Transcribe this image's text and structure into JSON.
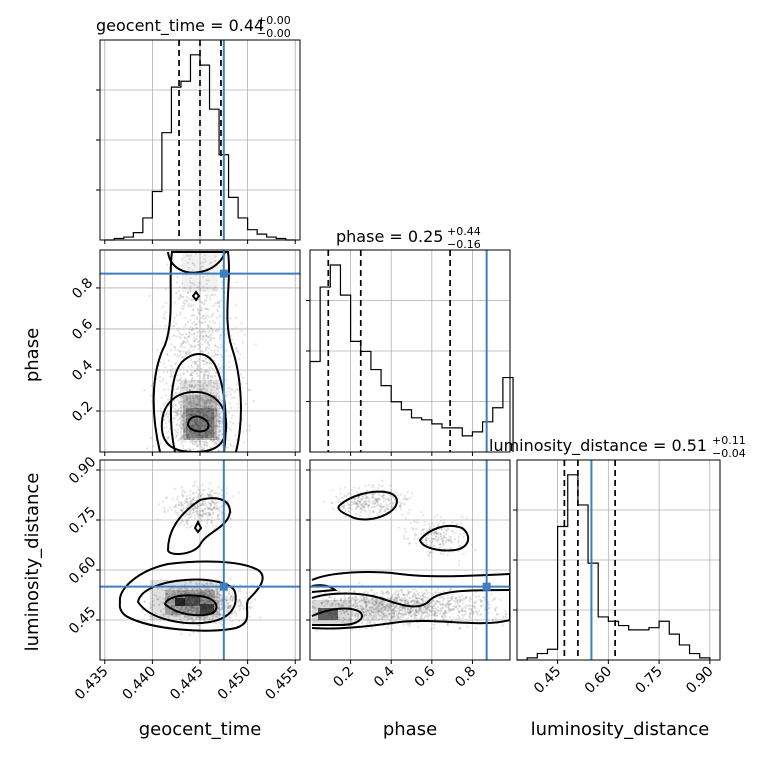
{
  "chart_data": {
    "type": "corner",
    "parameters": [
      "geocent_time",
      "phase",
      "luminosity_distance"
    ],
    "truth": {
      "geocent_time": 0.4475,
      "phase": 0.87,
      "luminosity_distance": 0.55
    },
    "colors": {
      "truth": "#3f7fbf",
      "line": "#000000",
      "grid": "#b0b0b0"
    },
    "grid": true,
    "titles": [
      {
        "param": "geocent_time",
        "text": "geocent_time = 0.44",
        "plus": "+0.00",
        "minus": "−0.00"
      },
      {
        "param": "phase",
        "text": "phase = 0.25",
        "plus": "+0.44",
        "minus": "−0.16"
      },
      {
        "param": "luminosity_distance",
        "text": "luminosity_distance = 0.51",
        "plus": "+0.11",
        "minus": "−0.04"
      }
    ],
    "axis_labels": {
      "geocent_time": "geocent_time",
      "phase": "phase",
      "luminosity_distance": "luminosity_distance"
    },
    "ranges": {
      "geocent_time": [
        0.4345,
        0.4555
      ],
      "phase": [
        0.0,
        0.985
      ],
      "luminosity_distance": [
        0.33,
        0.93
      ]
    },
    "ticks": {
      "geocent_time": [
        "0.435",
        "0.440",
        "0.445",
        "0.450",
        "0.455"
      ],
      "phase": [
        "0.2",
        "0.4",
        "0.6",
        "0.8"
      ],
      "luminosity_distance": [
        "0.45",
        "0.60",
        "0.75",
        "0.90"
      ]
    },
    "quantiles": {
      "geocent_time": [
        0.4428,
        0.445,
        0.4472
      ],
      "phase": [
        0.09,
        0.25,
        0.69
      ],
      "luminosity_distance": [
        0.47,
        0.51,
        0.62
      ]
    },
    "histograms": {
      "geocent_time": {
        "edges": [
          0.435,
          0.436,
          0.437,
          0.438,
          0.439,
          0.44,
          0.441,
          0.442,
          0.443,
          0.444,
          0.445,
          0.446,
          0.447,
          0.448,
          0.449,
          0.45,
          0.451,
          0.452,
          0.453,
          0.454,
          0.455
        ],
        "counts": [
          0,
          1,
          2,
          5,
          15,
          33,
          73,
          104,
          108,
          126,
          119,
          89,
          58,
          29,
          15,
          7,
          4,
          2,
          1,
          0
        ]
      },
      "phase": {
        "edges": [
          0.0,
          0.05,
          0.1,
          0.15,
          0.2,
          0.25,
          0.3,
          0.35,
          0.4,
          0.45,
          0.5,
          0.55,
          0.6,
          0.65,
          0.7,
          0.75,
          0.8,
          0.85,
          0.9,
          0.95,
          1.0
        ],
        "counts": [
          45,
          82,
          93,
          78,
          55,
          50,
          41,
          33,
          25,
          21,
          17,
          16,
          14,
          12,
          12,
          8,
          10,
          15,
          22,
          37
        ]
      },
      "luminosity_distance": {
        "edges": [
          0.33,
          0.36,
          0.39,
          0.42,
          0.45,
          0.48,
          0.51,
          0.54,
          0.57,
          0.6,
          0.63,
          0.66,
          0.69,
          0.72,
          0.75,
          0.78,
          0.81,
          0.84,
          0.87,
          0.9
        ],
        "counts": [
          0,
          1,
          3,
          5,
          62,
          86,
          72,
          45,
          20,
          18,
          16,
          14,
          14,
          15,
          18,
          12,
          7,
          3,
          1
        ]
      }
    }
  }
}
